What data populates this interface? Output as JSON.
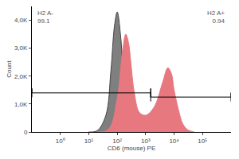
{
  "chart_data": {
    "type": "histogram_overlay",
    "xlabel": "CD6 (mouse) PE",
    "ylabel": "Count",
    "log": "x",
    "grid": false,
    "xlim": [
      0.1,
      1000000
    ],
    "xticks": [
      {
        "value": 1,
        "label": "10⁰"
      },
      {
        "value": 10,
        "label": "10¹"
      },
      {
        "value": 100,
        "label": "10²"
      },
      {
        "value": 1000,
        "label": "10³"
      },
      {
        "value": 10000,
        "label": "10⁴"
      },
      {
        "value": 100000,
        "label": "10⁵"
      }
    ],
    "ylim": [
      0,
      4500
    ],
    "yticks": [
      0,
      {
        "value": 1000,
        "label": "1,0K"
      },
      {
        "value": 2000,
        "label": "2,0K"
      },
      {
        "value": 3000,
        "label": "3,0K"
      },
      {
        "value": 4000,
        "label": "4,0K"
      }
    ],
    "series": [
      {
        "color": "#e8787f",
        "x": [
          20,
          50,
          100,
          150,
          200,
          250,
          300,
          400,
          600,
          1000,
          2000,
          4000,
          6000,
          8000,
          10000,
          15000,
          20000,
          30000,
          50000
        ],
        "values": [
          0,
          100,
          1200,
          2800,
          3500,
          3200,
          2500,
          1400,
          700,
          600,
          900,
          1800,
          2300,
          2100,
          1500,
          700,
          300,
          80,
          0
        ]
      },
      {
        "color": "#7f7f7f",
        "x": [
          10,
          20,
          40,
          60,
          80,
          100,
          130,
          170,
          220,
          300,
          500
        ],
        "values": [
          0,
          50,
          600,
          2200,
          3800,
          4300,
          3500,
          1800,
          600,
          100,
          0
        ]
      }
    ],
    "gates": [
      {
        "label": "H2 A-",
        "value": 99.1,
        "range": [
          0.1,
          1500
        ],
        "y": 1400
      },
      {
        "label": "H2 A+",
        "value": 0.94,
        "range": [
          1500,
          1000000
        ],
        "y": 1250
      }
    ]
  }
}
